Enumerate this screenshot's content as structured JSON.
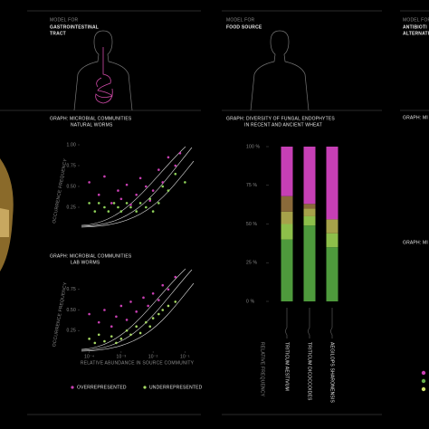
{
  "models": [
    {
      "label": "MODEL FOR",
      "name_lines": [
        "GASTROINTESTINAL",
        "TRACT"
      ]
    },
    {
      "label": "MODEL FOR",
      "name_lines": [
        "FOOD SOURCE"
      ]
    },
    {
      "label": "MODEL FOR",
      "name_lines": [
        "ANTIBIOTI",
        "ALTERNATI"
      ]
    }
  ],
  "right_graph_titles": [
    "GRAPH: MI",
    "GRAPH: MI"
  ],
  "chart_data": [
    {
      "type": "scatter",
      "title": "GRAPH: MICROBIAL COMMUNITIES",
      "subtitle": "NATURAL WORMS",
      "ylabel": "OCCURRENCE FREQUENCY",
      "log_x": true,
      "xlim": [
        5e-05,
        0.2
      ],
      "ylim": [
        0,
        1
      ],
      "yticks": [
        {
          "value": 1,
          "label": "1.00"
        },
        {
          "value": 0.75,
          "label": "0.75"
        },
        {
          "value": 0.5,
          "label": "0.50"
        },
        {
          "value": 0.25,
          "label": "0.25"
        }
      ],
      "series": [
        {
          "color": "#c93fb3",
          "x": [
            0.0001,
            0.0002,
            0.0003,
            0.0005,
            0.0008,
            0.001,
            0.0015,
            0.002,
            0.003,
            0.004,
            0.006,
            0.008,
            0.01,
            0.015,
            0.02,
            0.03,
            0.05,
            0.07
          ],
          "values": [
            0.55,
            0.4,
            0.62,
            0.3,
            0.45,
            0.35,
            0.52,
            0.28,
            0.4,
            0.6,
            0.5,
            0.33,
            0.45,
            0.7,
            0.55,
            0.85,
            0.75,
            0.9
          ]
        },
        {
          "color": "#8fd25a",
          "x": [
            0.0001,
            0.00015,
            0.0002,
            0.0003,
            0.0004,
            0.0006,
            0.0008,
            0.001,
            0.0015,
            0.002,
            0.003,
            0.004,
            0.006,
            0.008,
            0.01,
            0.015,
            0.02,
            0.03,
            0.05,
            0.1
          ],
          "values": [
            0.3,
            0.2,
            0.3,
            0.25,
            0.2,
            0.3,
            0.25,
            0.2,
            0.3,
            0.25,
            0.2,
            0.3,
            0.25,
            0.35,
            0.2,
            0.3,
            0.5,
            0.45,
            0.65,
            0.55
          ]
        }
      ]
    },
    {
      "type": "scatter",
      "title": "GRAPH: MICROBIAL COMMUNITIES",
      "subtitle": "LAB WORMS",
      "ylabel": "OCCURRENCE FREQUENCY",
      "xlabel": "RELATIVE ABUNDANCE IN SOURCE COMMUNITY",
      "log_x": true,
      "xlim": [
        5e-05,
        0.2
      ],
      "ylim": [
        0,
        1
      ],
      "yticks": [
        {
          "value": 0.75,
          "label": "0.75"
        },
        {
          "value": 0.5,
          "label": "0.50"
        },
        {
          "value": 0.25,
          "label": "0.25"
        }
      ],
      "xticks": [
        {
          "value": 0.0001,
          "label": "10⁻⁴"
        },
        {
          "value": 0.001,
          "label": "10⁻³"
        },
        {
          "value": 0.01,
          "label": "10⁻²"
        },
        {
          "value": 0.1,
          "label": "10⁻¹"
        }
      ],
      "series": [
        {
          "name": "OVERREPRESENTED",
          "color": "#c93fb3",
          "x": [
            0.0001,
            0.0002,
            0.0003,
            0.0005,
            0.0007,
            0.001,
            0.0015,
            0.002,
            0.003,
            0.005,
            0.007,
            0.01,
            0.015,
            0.02,
            0.03,
            0.05
          ],
          "values": [
            0.45,
            0.35,
            0.5,
            0.3,
            0.42,
            0.55,
            0.38,
            0.6,
            0.48,
            0.65,
            0.55,
            0.7,
            0.62,
            0.8,
            0.75,
            0.9
          ]
        },
        {
          "name": "UNDERREPRESENTED",
          "color": "#a6d964",
          "x": [
            0.0001,
            0.00015,
            0.0002,
            0.0003,
            0.0005,
            0.0007,
            0.001,
            0.0015,
            0.002,
            0.003,
            0.004,
            0.006,
            0.008,
            0.01,
            0.015,
            0.02,
            0.03,
            0.05
          ],
          "values": [
            0.15,
            0.1,
            0.2,
            0.12,
            0.18,
            0.1,
            0.15,
            0.25,
            0.2,
            0.3,
            0.22,
            0.35,
            0.3,
            0.4,
            0.45,
            0.5,
            0.55,
            0.6
          ]
        }
      ]
    },
    {
      "type": "stacked_bar",
      "title": "GRAPH: DIVERSITY OF FUNGAL ENDOPHYTES",
      "subtitle": "IN RECENT AND ANCIENT WHEAT",
      "ylabel": "RELATIVE FREQUENCY",
      "categories": [
        "TRITICUM AESTIVUM",
        "TRITICUM DICOCCOIDES",
        "AEGILOPS SHARONENSIS"
      ],
      "ylim": [
        0,
        100
      ],
      "yticks": [
        {
          "value": 100,
          "label": "100 %"
        },
        {
          "value": 75,
          "label": "75 %"
        },
        {
          "value": 50,
          "label": "50 %"
        },
        {
          "value": 25,
          "label": "25 %"
        },
        {
          "value": 0,
          "label": "0 %"
        }
      ],
      "series": [
        {
          "color": "#4e9a3c",
          "values": [
            40,
            49,
            35
          ]
        },
        {
          "color": "#8dbf4a",
          "values": [
            10,
            6,
            9
          ]
        },
        {
          "color": "#a6a24a",
          "values": [
            8,
            5,
            9
          ]
        },
        {
          "color": "#8a6a3a",
          "values": [
            10,
            3,
            0
          ]
        },
        {
          "color": "#c63fb5",
          "values": [
            32,
            37,
            47
          ]
        }
      ]
    }
  ]
}
